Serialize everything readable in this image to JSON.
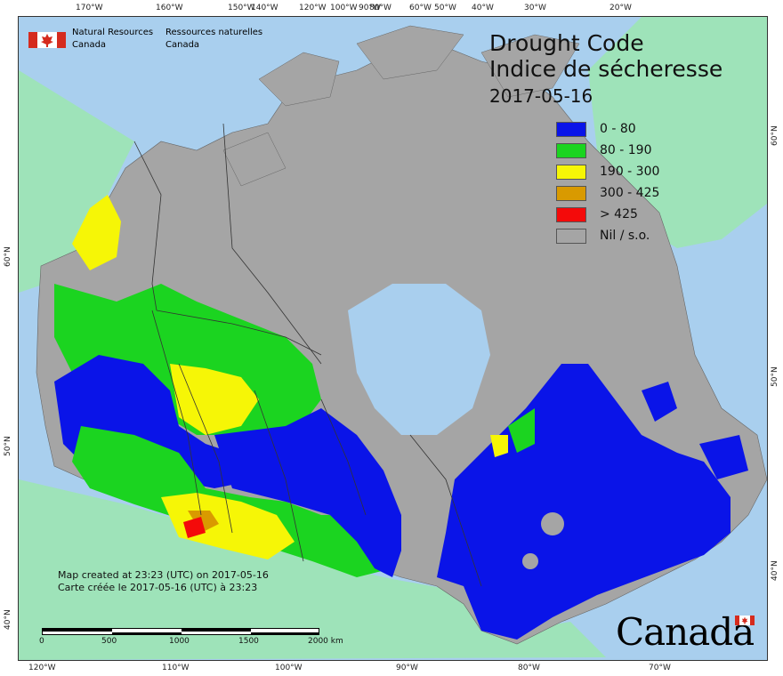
{
  "map": {
    "title_en": "Drought Code",
    "title_fr": "Indice de sécheresse",
    "date": "2017-05-16",
    "agency": {
      "en_line1": "Natural Resources",
      "en_line2": "Canada",
      "fr_line1": "Ressources naturelles",
      "fr_line2": "Canada"
    },
    "legend": [
      {
        "label": "0 - 80",
        "color": "#0a14e8"
      },
      {
        "label": "80 - 190",
        "color": "#1bd420"
      },
      {
        "label": "190 - 300",
        "color": "#f6f606"
      },
      {
        "label": "300 - 425",
        "color": "#d99a00"
      },
      {
        "label": "> 425",
        "color": "#f40a0a"
      },
      {
        "label": "Nil / s.o.",
        "color": "#a5a5a5"
      }
    ],
    "credit_en": "Map created at 23:23 (UTC) on 2017-05-16",
    "credit_fr": "Carte créée le 2017-05-16 (UTC) à 23:23",
    "scale": {
      "ticks": [
        "0",
        "500",
        "1000",
        "1500",
        "2000  km"
      ]
    },
    "wordmark": "Canada",
    "graticule": {
      "top": [
        "170°W",
        "160°W",
        "150°W",
        "140°W",
        "120°W",
        "100°W",
        "90°W",
        "80°W",
        "60°W",
        "50°W",
        "40°W",
        "30°W",
        "20°W"
      ],
      "bottom": [
        "120°W",
        "110°W",
        "100°W",
        "90°W",
        "80°W",
        "70°W"
      ],
      "left": [
        "60°N",
        "50°N",
        "40°N"
      ],
      "right": [
        "60°N",
        "50°N",
        "40°N"
      ]
    },
    "colors": {
      "water": "#a9cfee",
      "foreign_land": "#9ee3b9",
      "no_data": "#a5a5a5",
      "border": "#333333"
    }
  }
}
